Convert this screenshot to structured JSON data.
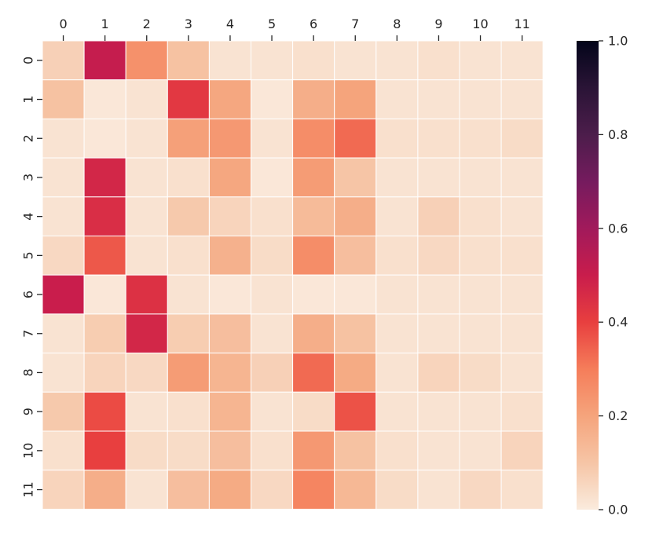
{
  "chart_data": {
    "type": "heatmap",
    "title": "",
    "xlabel": "",
    "ylabel": "",
    "x_labels": [
      "0",
      "1",
      "2",
      "3",
      "4",
      "5",
      "6",
      "7",
      "8",
      "9",
      "10",
      "11"
    ],
    "y_labels": [
      "0",
      "1",
      "2",
      "3",
      "4",
      "5",
      "6",
      "7",
      "8",
      "9",
      "10",
      "11"
    ],
    "vmin": 0.0,
    "vmax": 1.0,
    "colorbar_ticks": [
      {
        "value": 0.0,
        "label": "0.0"
      },
      {
        "value": 0.2,
        "label": "0.2"
      },
      {
        "value": 0.4,
        "label": "0.4"
      },
      {
        "value": 0.6,
        "label": "0.6"
      },
      {
        "value": 0.8,
        "label": "0.8"
      },
      {
        "value": 1.0,
        "label": "1.0"
      }
    ],
    "colormap": [
      {
        "stop": 0.0,
        "color": "#faebdd"
      },
      {
        "stop": 0.1,
        "color": "#f6c5a6"
      },
      {
        "stop": 0.2,
        "color": "#f5a47c"
      },
      {
        "stop": 0.3,
        "color": "#f57d5a"
      },
      {
        "stop": 0.4,
        "color": "#e83f3f"
      },
      {
        "stop": 0.5,
        "color": "#c91d4c"
      },
      {
        "stop": 0.6,
        "color": "#a11a5b"
      },
      {
        "stop": 0.7,
        "color": "#751b5e"
      },
      {
        "stop": 0.8,
        "color": "#4c1d4b"
      },
      {
        "stop": 0.9,
        "color": "#2a1436"
      },
      {
        "stop": 1.0,
        "color": "#03051a"
      }
    ],
    "values": [
      [
        0.07,
        0.51,
        0.25,
        0.11,
        0.02,
        0.02,
        0.03,
        0.02,
        0.02,
        0.03,
        0.02,
        0.02
      ],
      [
        0.11,
        0.01,
        0.02,
        0.42,
        0.19,
        0.01,
        0.17,
        0.2,
        0.02,
        0.02,
        0.02,
        0.02
      ],
      [
        0.02,
        0.01,
        0.02,
        0.21,
        0.23,
        0.02,
        0.26,
        0.33,
        0.03,
        0.03,
        0.03,
        0.04
      ],
      [
        0.02,
        0.47,
        0.02,
        0.03,
        0.19,
        0.01,
        0.22,
        0.1,
        0.02,
        0.02,
        0.02,
        0.02
      ],
      [
        0.02,
        0.45,
        0.02,
        0.09,
        0.06,
        0.03,
        0.13,
        0.17,
        0.02,
        0.07,
        0.03,
        0.02
      ],
      [
        0.05,
        0.36,
        0.02,
        0.03,
        0.16,
        0.04,
        0.26,
        0.12,
        0.03,
        0.05,
        0.03,
        0.03
      ],
      [
        0.5,
        0.01,
        0.44,
        0.02,
        0.01,
        0.02,
        0.01,
        0.01,
        0.02,
        0.02,
        0.02,
        0.02
      ],
      [
        0.02,
        0.08,
        0.47,
        0.08,
        0.12,
        0.02,
        0.17,
        0.11,
        0.02,
        0.02,
        0.02,
        0.02
      ],
      [
        0.02,
        0.06,
        0.05,
        0.22,
        0.15,
        0.07,
        0.33,
        0.18,
        0.02,
        0.06,
        0.04,
        0.02
      ],
      [
        0.09,
        0.38,
        0.02,
        0.03,
        0.15,
        0.02,
        0.04,
        0.37,
        0.02,
        0.02,
        0.02,
        0.03
      ],
      [
        0.03,
        0.4,
        0.04,
        0.04,
        0.12,
        0.03,
        0.23,
        0.11,
        0.03,
        0.02,
        0.02,
        0.06
      ],
      [
        0.06,
        0.17,
        0.02,
        0.12,
        0.18,
        0.05,
        0.28,
        0.14,
        0.04,
        0.02,
        0.05,
        0.03
      ]
    ]
  }
}
